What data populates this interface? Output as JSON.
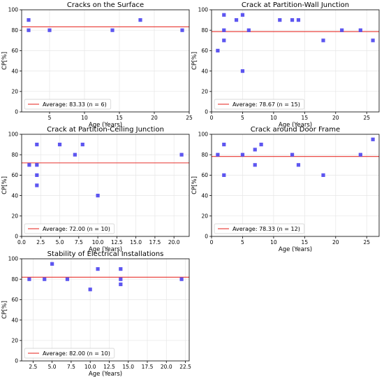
{
  "colors": {
    "marker": "#4b44ee",
    "average_line": "#e8332e",
    "grid": "#e6e6e6",
    "axes": "#000000"
  },
  "chart_data": [
    {
      "type": "scatter",
      "title": "Cracks on the Surface",
      "xlabel": "Age (Years)",
      "ylabel": "CP[%]",
      "xlim": [
        1,
        25
      ],
      "ylim": [
        0,
        100
      ],
      "xticks": [
        5,
        10,
        15,
        20,
        25
      ],
      "xtick_labels": [
        "5",
        "10",
        "15",
        "20",
        "25"
      ],
      "yticks": [
        0,
        20,
        40,
        60,
        80,
        100
      ],
      "ytick_labels": [
        "0",
        "20",
        "40",
        "60",
        "80",
        "100"
      ],
      "x": [
        2,
        2,
        5,
        14,
        18,
        24
      ],
      "y": [
        90,
        80,
        80,
        80,
        90,
        80
      ],
      "average": 83.33,
      "legend": "Average: 83.33  (n = 6)",
      "legend_position": "lower-left",
      "grid": true
    },
    {
      "type": "scatter",
      "title": "Crack at Partition-Wall Junction",
      "xlabel": "Age (Years)",
      "ylabel": "CP[%]",
      "xlim": [
        0,
        27
      ],
      "ylim": [
        0,
        100
      ],
      "xticks": [
        0,
        5,
        10,
        15,
        20,
        25
      ],
      "xtick_labels": [
        "0",
        "5",
        "10",
        "15",
        "20",
        "25"
      ],
      "yticks": [
        0,
        20,
        40,
        60,
        80,
        100
      ],
      "ytick_labels": [
        "0",
        "20",
        "40",
        "60",
        "80",
        "100"
      ],
      "x": [
        1,
        2,
        2,
        2,
        4,
        5,
        5,
        6,
        11,
        13,
        14,
        18,
        21,
        24,
        26
      ],
      "y": [
        60,
        70,
        80,
        95,
        90,
        95,
        40,
        80,
        90,
        90,
        90,
        70,
        80,
        80,
        70
      ],
      "average": 78.67,
      "legend": "Average: 78.67  (n = 15)",
      "legend_position": "lower-left",
      "grid": true
    },
    {
      "type": "scatter",
      "title": "Crack at Partition-Ceiling Junction",
      "xlabel": "Age (Years)",
      "ylabel": "CP[%]",
      "xlim": [
        0,
        22
      ],
      "ylim": [
        0,
        100
      ],
      "xticks": [
        0,
        2.5,
        5,
        7.5,
        10,
        12.5,
        15,
        17.5,
        20
      ],
      "xtick_labels": [
        "0.0",
        "2.5",
        "5.0",
        "7.5",
        "10.0",
        "12.5",
        "15.0",
        "17.5",
        "20.0"
      ],
      "yticks": [
        0,
        20,
        40,
        60,
        80,
        100
      ],
      "ytick_labels": [
        "0",
        "20",
        "40",
        "60",
        "80",
        "100"
      ],
      "x": [
        1,
        2,
        2,
        2,
        2,
        5,
        7,
        8,
        10,
        21
      ],
      "y": [
        70,
        90,
        70,
        60,
        50,
        90,
        80,
        90,
        40,
        80
      ],
      "average": 72.0,
      "legend": "Average: 72.00  (n = 10)",
      "legend_position": "lower-left",
      "grid": true
    },
    {
      "type": "scatter",
      "title": "Crack around Door Frame",
      "xlabel": "Age (Years)",
      "ylabel": "CP[%]",
      "xlim": [
        0,
        27
      ],
      "ylim": [
        0,
        100
      ],
      "xticks": [
        0,
        5,
        10,
        15,
        20,
        25
      ],
      "xtick_labels": [
        "0",
        "5",
        "10",
        "15",
        "20",
        "25"
      ],
      "yticks": [
        0,
        20,
        40,
        60,
        80,
        100
      ],
      "ytick_labels": [
        "0",
        "20",
        "40",
        "60",
        "80",
        "100"
      ],
      "x": [
        1,
        2,
        2,
        5,
        7,
        7,
        8,
        13,
        14,
        18,
        24,
        26
      ],
      "y": [
        80,
        90,
        60,
        80,
        85,
        70,
        90,
        80,
        70,
        60,
        80,
        95
      ],
      "average": 78.33,
      "legend": "Average: 78.33  (n = 12)",
      "legend_position": "lower-left",
      "grid": true
    },
    {
      "type": "scatter",
      "title": "Stability of Electrical Installations",
      "xlabel": "Age (Years)",
      "ylabel": "CP[%]",
      "xlim": [
        1,
        23
      ],
      "ylim": [
        0,
        100
      ],
      "xticks": [
        2.5,
        5,
        7.5,
        10,
        12.5,
        15,
        17.5,
        20,
        22.5
      ],
      "xtick_labels": [
        "2.5",
        "5.0",
        "7.5",
        "10.0",
        "12.5",
        "15.0",
        "17.5",
        "20.0",
        "22.5"
      ],
      "yticks": [
        0,
        20,
        40,
        60,
        80,
        100
      ],
      "ytick_labels": [
        "0",
        "20",
        "40",
        "60",
        "80",
        "100"
      ],
      "x": [
        2,
        4,
        5,
        7,
        10,
        11,
        14,
        14,
        14,
        22
      ],
      "y": [
        80,
        80,
        95,
        80,
        70,
        90,
        90,
        80,
        75,
        80
      ],
      "average": 82.0,
      "legend": "Average: 82.00  (n = 10)",
      "legend_position": "lower-left",
      "grid": true
    }
  ]
}
